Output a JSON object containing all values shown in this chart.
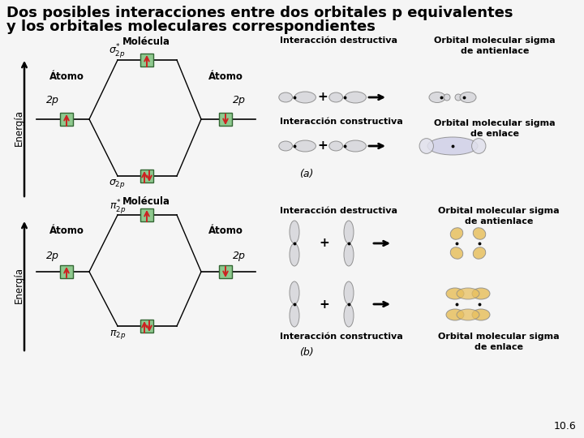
{
  "title_line1": "Dos posibles interacciones entre dos orbitales p equivalentes",
  "title_line2": "y los orbitales moleculares correspondientes",
  "title_fontsize": 13,
  "bg_color": "#f5f5f5",
  "green_box": "#8ec98e",
  "red_color": "#cc2222",
  "orange_color": "#e8a840",
  "page_num": "10.6",
  "diagram_a_label": "(a)",
  "diagram_b_label": "(b)",
  "energia_label": "Energía",
  "molecula_label": "Molécula",
  "atomo_label": "Átomo",
  "two_p": "2p",
  "interaccion_destructiva": "Interacción destructiva",
  "interaccion_constructiva": "Interacción constructiva",
  "orbital_sigma_antienlace_line1": "Orbital molecular sigma",
  "orbital_sigma_antienlace_line2": "de antienlace",
  "orbital_sigma_enlace_line1": "Orbital molecular sigma",
  "orbital_sigma_enlace_line2": "de enlace"
}
